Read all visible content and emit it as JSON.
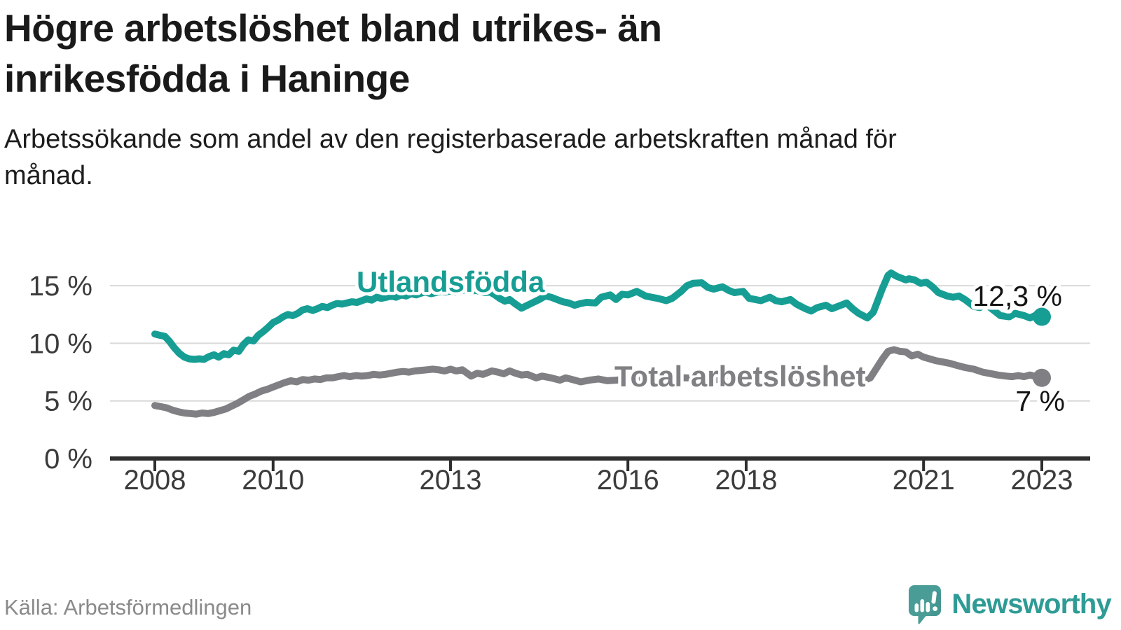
{
  "header": {
    "title": "Högre arbetslöshet bland utrikes- än inrikesfödda i Haninge",
    "subtitle": "Arbetssökande som andel av den registerbaserade arbetskraften månad för månad."
  },
  "footer": {
    "source": "Källa: Arbetsförmedlingen",
    "brand": "Newsworthy"
  },
  "colors": {
    "accent_teal": "#179e94",
    "series_gray": "#808084",
    "title_text": "#1a1a1a",
    "axis_dark": "#2e2e2e",
    "tick_label": "#3b3b3b",
    "grid": "#d9d9d9",
    "muted_gray": "#8a8a8a",
    "logo_teal": "#4a9d97",
    "brand_text_teal": "#2e9b95"
  },
  "chart_data": {
    "type": "line",
    "unit": "%",
    "grid": "horizontal",
    "legend_position": "inline-labels",
    "x_axis": {
      "ticks": [
        2008,
        2010,
        2013,
        2016,
        2018,
        2021,
        2023
      ],
      "range": [
        2007.25,
        2023.85
      ]
    },
    "y_axis": {
      "ticks": [
        0,
        5,
        10,
        15
      ],
      "tick_labels": [
        "0 %",
        "5 %",
        "10 %",
        "15 %"
      ],
      "range": [
        0,
        17
      ]
    },
    "series": [
      {
        "id": "utlandsfodda",
        "name": "Utlandsfödda",
        "color": "#179e94",
        "end_value": 12.3,
        "end_label": "12,3 %",
        "points": [
          [
            2008.0,
            10.8
          ],
          [
            2008.08,
            10.7
          ],
          [
            2008.17,
            10.6
          ],
          [
            2008.25,
            10.15
          ],
          [
            2008.33,
            9.6
          ],
          [
            2008.42,
            9.1
          ],
          [
            2008.5,
            8.8
          ],
          [
            2008.58,
            8.65
          ],
          [
            2008.67,
            8.6
          ],
          [
            2008.75,
            8.65
          ],
          [
            2008.83,
            8.6
          ],
          [
            2008.92,
            8.85
          ],
          [
            2009.0,
            9.0
          ],
          [
            2009.08,
            8.8
          ],
          [
            2009.17,
            9.1
          ],
          [
            2009.25,
            9.0
          ],
          [
            2009.33,
            9.4
          ],
          [
            2009.42,
            9.3
          ],
          [
            2009.5,
            9.9
          ],
          [
            2009.58,
            10.3
          ],
          [
            2009.67,
            10.2
          ],
          [
            2009.75,
            10.7
          ],
          [
            2009.83,
            11.0
          ],
          [
            2009.92,
            11.4
          ],
          [
            2010.0,
            11.8
          ],
          [
            2010.08,
            12.0
          ],
          [
            2010.17,
            12.3
          ],
          [
            2010.25,
            12.5
          ],
          [
            2010.33,
            12.4
          ],
          [
            2010.42,
            12.6
          ],
          [
            2010.5,
            12.9
          ],
          [
            2010.58,
            13.0
          ],
          [
            2010.67,
            12.85
          ],
          [
            2010.75,
            13.0
          ],
          [
            2010.83,
            13.2
          ],
          [
            2010.92,
            13.1
          ],
          [
            2011.0,
            13.3
          ],
          [
            2011.08,
            13.45
          ],
          [
            2011.17,
            13.4
          ],
          [
            2011.25,
            13.5
          ],
          [
            2011.33,
            13.6
          ],
          [
            2011.42,
            13.55
          ],
          [
            2011.5,
            13.7
          ],
          [
            2011.58,
            13.85
          ],
          [
            2011.67,
            13.75
          ],
          [
            2011.75,
            14.0
          ],
          [
            2011.83,
            13.9
          ],
          [
            2011.92,
            14.0
          ],
          [
            2012.0,
            14.1
          ],
          [
            2012.08,
            14.0
          ],
          [
            2012.17,
            14.2
          ],
          [
            2012.25,
            14.1
          ],
          [
            2012.33,
            14.3
          ],
          [
            2012.42,
            14.2
          ],
          [
            2012.5,
            14.35
          ],
          [
            2012.58,
            14.45
          ],
          [
            2012.67,
            14.3
          ],
          [
            2012.75,
            14.4
          ],
          [
            2012.83,
            14.5
          ],
          [
            2012.92,
            14.45
          ],
          [
            2013.0,
            14.55
          ],
          [
            2013.08,
            14.45
          ],
          [
            2013.17,
            14.55
          ],
          [
            2013.25,
            14.65
          ],
          [
            2013.33,
            14.5
          ],
          [
            2013.42,
            14.6
          ],
          [
            2013.5,
            14.5
          ],
          [
            2013.58,
            14.4
          ],
          [
            2013.67,
            14.45
          ],
          [
            2013.75,
            14.2
          ],
          [
            2013.83,
            13.9
          ],
          [
            2013.92,
            13.65
          ],
          [
            2014.0,
            13.8
          ],
          [
            2014.1,
            13.4
          ],
          [
            2014.2,
            13.05
          ],
          [
            2014.3,
            13.3
          ],
          [
            2014.4,
            13.55
          ],
          [
            2014.5,
            13.8
          ],
          [
            2014.6,
            14.1
          ],
          [
            2014.7,
            14.0
          ],
          [
            2014.8,
            13.8
          ],
          [
            2014.9,
            13.6
          ],
          [
            2015.0,
            13.5
          ],
          [
            2015.1,
            13.3
          ],
          [
            2015.2,
            13.45
          ],
          [
            2015.3,
            13.55
          ],
          [
            2015.45,
            13.5
          ],
          [
            2015.55,
            14.0
          ],
          [
            2015.7,
            14.2
          ],
          [
            2015.8,
            13.8
          ],
          [
            2015.9,
            14.25
          ],
          [
            2016.0,
            14.2
          ],
          [
            2016.15,
            14.5
          ],
          [
            2016.3,
            14.1
          ],
          [
            2016.4,
            14.0
          ],
          [
            2016.5,
            13.9
          ],
          [
            2016.65,
            13.7
          ],
          [
            2016.75,
            13.9
          ],
          [
            2016.9,
            14.5
          ],
          [
            2017.0,
            15.0
          ],
          [
            2017.1,
            15.2
          ],
          [
            2017.25,
            15.25
          ],
          [
            2017.35,
            14.85
          ],
          [
            2017.45,
            14.7
          ],
          [
            2017.6,
            14.9
          ],
          [
            2017.7,
            14.6
          ],
          [
            2017.8,
            14.4
          ],
          [
            2017.95,
            14.5
          ],
          [
            2018.05,
            13.9
          ],
          [
            2018.25,
            13.7
          ],
          [
            2018.4,
            14.0
          ],
          [
            2018.5,
            13.7
          ],
          [
            2018.6,
            13.6
          ],
          [
            2018.75,
            13.8
          ],
          [
            2018.85,
            13.4
          ],
          [
            2019.0,
            13.0
          ],
          [
            2019.1,
            12.8
          ],
          [
            2019.2,
            13.1
          ],
          [
            2019.35,
            13.3
          ],
          [
            2019.45,
            13.0
          ],
          [
            2019.6,
            13.3
          ],
          [
            2019.7,
            13.5
          ],
          [
            2019.8,
            13.0
          ],
          [
            2019.9,
            12.6
          ],
          [
            2020.05,
            12.2
          ],
          [
            2020.15,
            12.7
          ],
          [
            2020.3,
            14.7
          ],
          [
            2020.4,
            15.9
          ],
          [
            2020.45,
            16.1
          ],
          [
            2020.55,
            15.8
          ],
          [
            2020.7,
            15.5
          ],
          [
            2020.75,
            15.6
          ],
          [
            2020.85,
            15.5
          ],
          [
            2020.95,
            15.2
          ],
          [
            2021.05,
            15.3
          ],
          [
            2021.15,
            14.9
          ],
          [
            2021.25,
            14.4
          ],
          [
            2021.4,
            14.1
          ],
          [
            2021.5,
            14.0
          ],
          [
            2021.6,
            14.1
          ],
          [
            2021.7,
            13.8
          ],
          [
            2021.85,
            13.2
          ],
          [
            2021.95,
            13.1
          ],
          [
            2022.05,
            13.4
          ],
          [
            2022.2,
            12.8
          ],
          [
            2022.3,
            12.4
          ],
          [
            2022.45,
            12.3
          ],
          [
            2022.55,
            12.6
          ],
          [
            2022.7,
            12.4
          ],
          [
            2022.8,
            12.2
          ],
          [
            2022.9,
            12.45
          ],
          [
            2023.0,
            12.3
          ]
        ]
      },
      {
        "id": "total-arbetsloshet",
        "name": "Total arbetslöshet",
        "color": "#808084",
        "end_value": 7,
        "end_label": "7 %",
        "points": [
          [
            2008.0,
            4.6
          ],
          [
            2008.1,
            4.5
          ],
          [
            2008.2,
            4.4
          ],
          [
            2008.3,
            4.2
          ],
          [
            2008.4,
            4.05
          ],
          [
            2008.5,
            3.95
          ],
          [
            2008.6,
            3.9
          ],
          [
            2008.7,
            3.85
          ],
          [
            2008.8,
            3.95
          ],
          [
            2008.9,
            3.9
          ],
          [
            2009.0,
            4.0
          ],
          [
            2009.1,
            4.15
          ],
          [
            2009.2,
            4.3
          ],
          [
            2009.3,
            4.55
          ],
          [
            2009.4,
            4.8
          ],
          [
            2009.5,
            5.1
          ],
          [
            2009.6,
            5.4
          ],
          [
            2009.7,
            5.6
          ],
          [
            2009.8,
            5.85
          ],
          [
            2009.9,
            6.0
          ],
          [
            2010.0,
            6.2
          ],
          [
            2010.1,
            6.4
          ],
          [
            2010.2,
            6.6
          ],
          [
            2010.3,
            6.75
          ],
          [
            2010.4,
            6.65
          ],
          [
            2010.5,
            6.85
          ],
          [
            2010.6,
            6.8
          ],
          [
            2010.7,
            6.9
          ],
          [
            2010.8,
            6.85
          ],
          [
            2010.9,
            7.0
          ],
          [
            2011.0,
            7.0
          ],
          [
            2011.1,
            7.1
          ],
          [
            2011.2,
            7.2
          ],
          [
            2011.3,
            7.1
          ],
          [
            2011.4,
            7.2
          ],
          [
            2011.5,
            7.15
          ],
          [
            2011.6,
            7.2
          ],
          [
            2011.7,
            7.3
          ],
          [
            2011.8,
            7.25
          ],
          [
            2011.9,
            7.3
          ],
          [
            2012.0,
            7.4
          ],
          [
            2012.1,
            7.5
          ],
          [
            2012.2,
            7.55
          ],
          [
            2012.3,
            7.5
          ],
          [
            2012.4,
            7.6
          ],
          [
            2012.5,
            7.65
          ],
          [
            2012.6,
            7.7
          ],
          [
            2012.7,
            7.75
          ],
          [
            2012.8,
            7.7
          ],
          [
            2012.9,
            7.6
          ],
          [
            2013.0,
            7.75
          ],
          [
            2013.1,
            7.6
          ],
          [
            2013.2,
            7.7
          ],
          [
            2013.35,
            7.15
          ],
          [
            2013.45,
            7.4
          ],
          [
            2013.55,
            7.3
          ],
          [
            2013.7,
            7.6
          ],
          [
            2013.8,
            7.5
          ],
          [
            2013.9,
            7.35
          ],
          [
            2014.0,
            7.6
          ],
          [
            2014.1,
            7.4
          ],
          [
            2014.2,
            7.25
          ],
          [
            2014.3,
            7.3
          ],
          [
            2014.45,
            7.0
          ],
          [
            2014.55,
            7.15
          ],
          [
            2014.7,
            7.0
          ],
          [
            2014.85,
            6.8
          ],
          [
            2014.95,
            7.0
          ],
          [
            2015.1,
            6.8
          ],
          [
            2015.2,
            6.65
          ],
          [
            2015.35,
            6.8
          ],
          [
            2015.5,
            6.9
          ],
          [
            2015.65,
            6.75
          ],
          [
            2015.8,
            6.8
          ],
          [
            2016.0,
            6.9
          ],
          [
            2016.25,
            6.8
          ],
          [
            2016.5,
            6.9
          ],
          [
            2016.75,
            7.0
          ],
          [
            2017.0,
            7.0
          ],
          [
            2017.25,
            6.9
          ],
          [
            2017.5,
            6.85
          ],
          [
            2017.75,
            6.8
          ],
          [
            2018.0,
            6.7
          ],
          [
            2018.25,
            6.6
          ],
          [
            2018.5,
            6.6
          ],
          [
            2018.75,
            6.55
          ],
          [
            2019.0,
            6.6
          ],
          [
            2019.25,
            6.65
          ],
          [
            2019.5,
            6.7
          ],
          [
            2019.75,
            6.65
          ],
          [
            2019.95,
            6.7
          ],
          [
            2020.1,
            7.0
          ],
          [
            2020.2,
            7.8
          ],
          [
            2020.3,
            8.6
          ],
          [
            2020.4,
            9.3
          ],
          [
            2020.5,
            9.45
          ],
          [
            2020.6,
            9.3
          ],
          [
            2020.7,
            9.25
          ],
          [
            2020.8,
            8.9
          ],
          [
            2020.9,
            9.05
          ],
          [
            2021.0,
            8.8
          ],
          [
            2021.1,
            8.65
          ],
          [
            2021.2,
            8.5
          ],
          [
            2021.3,
            8.4
          ],
          [
            2021.45,
            8.25
          ],
          [
            2021.55,
            8.1
          ],
          [
            2021.7,
            7.9
          ],
          [
            2021.85,
            7.75
          ],
          [
            2022.0,
            7.5
          ],
          [
            2022.1,
            7.4
          ],
          [
            2022.25,
            7.25
          ],
          [
            2022.4,
            7.15
          ],
          [
            2022.5,
            7.1
          ],
          [
            2022.6,
            7.2
          ],
          [
            2022.7,
            7.1
          ],
          [
            2022.8,
            7.25
          ],
          [
            2022.9,
            7.1
          ],
          [
            2023.0,
            7.0
          ]
        ]
      }
    ]
  }
}
